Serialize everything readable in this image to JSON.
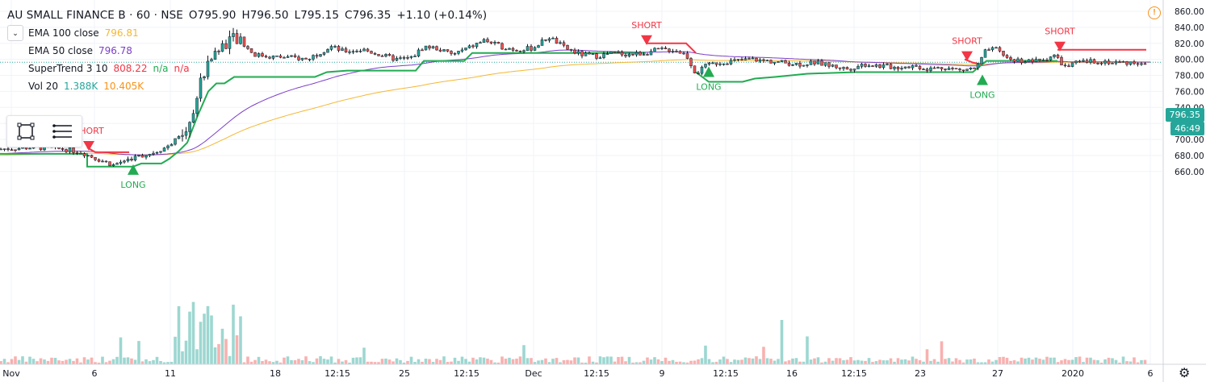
{
  "header": {
    "symbol": "AU SMALL FINANCE B · 60 · NSE",
    "open": "O795.90",
    "high": "H796.50",
    "low": "L795.15",
    "close": "C796.35",
    "change": "+1.10 (+0.14%)"
  },
  "indicators": [
    {
      "label": "EMA 100 close",
      "value": "796.81",
      "color": "#f5b731"
    },
    {
      "label": "EMA 50 close",
      "value": "796.78",
      "color": "#7b3fc9"
    },
    {
      "label": "SuperTrend 3 10",
      "value": "808.22",
      "extra1": "n/a",
      "extra2": "n/a",
      "color": "#f23645",
      "extra_color": "#22ab52"
    },
    {
      "label": "Vol 20",
      "value": "1.388K",
      "extra1": "10.405K",
      "color": "#26a69a",
      "extra_color": "#f7931a"
    }
  ],
  "price_axis": [
    "860.00",
    "840.00",
    "820.00",
    "800.00",
    "780.00",
    "760.00",
    "740.00",
    "720.00",
    "700.00",
    "680.00",
    "660.00"
  ],
  "current_price_tag": "796.35",
  "countdown_tag": "46:49",
  "time_axis": [
    "Nov",
    "6",
    "11",
    "18",
    "12:15",
    "25",
    "12:15",
    "Dec",
    "12:15",
    "9",
    "12:15",
    "16",
    "12:15",
    "23",
    "27",
    "2020",
    "6"
  ],
  "signals": [
    {
      "type": "SHORT"
    },
    {
      "type": "LONG"
    },
    {
      "type": "SHORT"
    },
    {
      "type": "LONG"
    },
    {
      "type": "SHORT"
    },
    {
      "type": "LONG"
    },
    {
      "type": "SHORT"
    }
  ],
  "colors": {
    "up": "#26a69a",
    "down": "#ef5350",
    "bull": "#22ab52",
    "bear": "#f23645",
    "ema100": "#f5b731",
    "ema50": "#7b3fc9"
  },
  "icons": [
    "chevron-down-icon",
    "rectangle-tool-icon",
    "lines-tool-icon",
    "alert-icon",
    "settings-gear-icon"
  ]
}
